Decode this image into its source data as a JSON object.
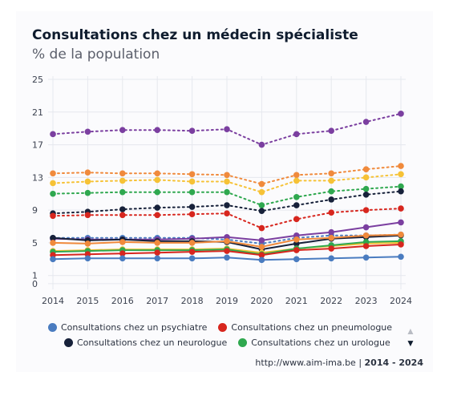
{
  "title": "Consultations chez un médecin spécialiste",
  "subtitle": "% de la population",
  "legend": [
    {
      "label": "Consultations chez un psychiatre",
      "color": "#4a7cc0"
    },
    {
      "label": "Consultations chez un pneumologue",
      "color": "#d7261e"
    },
    {
      "label": "Consultations chez un neurologue",
      "color": "#17213a"
    },
    {
      "label": "Consultations chez un urologue",
      "color": "#2fa84f"
    }
  ],
  "nav": {
    "up": "▲",
    "down": "▼"
  },
  "source": {
    "url": "http://www.aim-ima.be",
    "years": "2014 - 2024"
  },
  "chart_data": {
    "type": "line",
    "title": "Consultations chez un médecin spécialiste",
    "ylabel": "% de la population",
    "x": [
      2014,
      2015,
      2016,
      2017,
      2018,
      2019,
      2020,
      2021,
      2022,
      2023,
      2024
    ],
    "ylim": [
      -0.5,
      25
    ],
    "yticks": [
      0,
      1,
      5,
      9,
      13,
      17,
      21,
      25
    ],
    "grid": true,
    "series": [
      {
        "color": "#7b3fa0",
        "dashed": true,
        "values": [
          18.3,
          18.6,
          18.8,
          18.8,
          18.7,
          18.9,
          17.0,
          18.3,
          18.7,
          19.8,
          20.8
        ]
      },
      {
        "color": "#f08a3c",
        "dashed": true,
        "values": [
          13.5,
          13.6,
          13.5,
          13.5,
          13.4,
          13.3,
          12.2,
          13.3,
          13.5,
          14.0,
          14.4
        ]
      },
      {
        "color": "#f6c236",
        "dashed": true,
        "values": [
          12.3,
          12.5,
          12.6,
          12.7,
          12.5,
          12.5,
          11.2,
          12.6,
          12.6,
          13.0,
          13.4
        ]
      },
      {
        "color": "#2fa84f",
        "dashed": true,
        "values": [
          11.0,
          11.1,
          11.2,
          11.2,
          11.2,
          11.2,
          9.6,
          10.6,
          11.3,
          11.6,
          11.9
        ]
      },
      {
        "color": "#17213a",
        "dashed": true,
        "values": [
          8.6,
          8.8,
          9.1,
          9.3,
          9.4,
          9.6,
          8.9,
          9.6,
          10.3,
          10.9,
          11.3
        ]
      },
      {
        "color": "#d7261e",
        "dashed": true,
        "values": [
          8.3,
          8.4,
          8.4,
          8.4,
          8.5,
          8.6,
          6.8,
          7.9,
          8.7,
          9.0,
          9.2
        ]
      },
      {
        "color": "#4a7cc0",
        "dashed": true,
        "values": [
          5.6,
          5.6,
          5.6,
          5.6,
          5.6,
          5.4,
          4.9,
          5.6,
          5.9,
          5.9,
          6.0
        ]
      },
      {
        "color": "#7b3fa0",
        "dashed": false,
        "values": [
          5.5,
          5.4,
          5.4,
          5.4,
          5.5,
          5.7,
          5.3,
          5.9,
          6.3,
          6.9,
          7.5
        ]
      },
      {
        "color": "#17213a",
        "dashed": false,
        "values": [
          5.6,
          5.3,
          5.4,
          5.2,
          5.2,
          5.1,
          4.2,
          4.9,
          5.5,
          5.7,
          5.9
        ]
      },
      {
        "color": "#f08a3c",
        "dashed": false,
        "values": [
          5.0,
          4.9,
          5.1,
          5.0,
          5.0,
          5.2,
          4.5,
          5.4,
          5.6,
          5.9,
          6.0
        ]
      },
      {
        "color": "#f6c236",
        "dashed": false,
        "values": [
          4.0,
          4.1,
          4.2,
          4.2,
          4.2,
          4.3,
          3.8,
          4.3,
          4.6,
          4.9,
          5.0
        ]
      },
      {
        "color": "#2fa84f",
        "dashed": false,
        "values": [
          3.9,
          4.0,
          4.1,
          4.1,
          4.1,
          4.2,
          3.6,
          4.3,
          4.7,
          5.1,
          5.2
        ]
      },
      {
        "color": "#d7261e",
        "dashed": false,
        "values": [
          3.5,
          3.6,
          3.7,
          3.8,
          3.9,
          4.0,
          3.5,
          4.1,
          4.3,
          4.6,
          4.8
        ]
      },
      {
        "color": "#4a7cc0",
        "dashed": false,
        "values": [
          3.0,
          3.1,
          3.1,
          3.1,
          3.1,
          3.2,
          2.9,
          3.0,
          3.1,
          3.2,
          3.3
        ]
      }
    ]
  }
}
